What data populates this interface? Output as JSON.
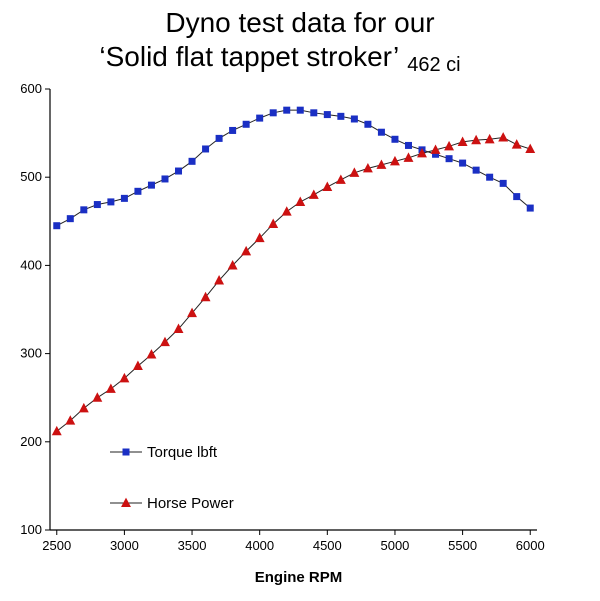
{
  "chart_data": {
    "type": "line",
    "title_line1": "Dyno test data for our",
    "title_line2": "‘Solid flat tappet stroker’",
    "title_suffix": "462 ci",
    "xlabel": "Engine RPM",
    "ylabel": "",
    "xlim": [
      2450,
      6050
    ],
    "ylim": [
      100,
      600
    ],
    "xticks": [
      2500,
      3000,
      3500,
      4000,
      4500,
      5000,
      5500,
      6000
    ],
    "yticks": [
      100,
      200,
      300,
      400,
      500,
      600
    ],
    "grid": false,
    "legend_position": "bottom-left",
    "series": [
      {
        "name": "Torque lbft",
        "color": "#1a2fc4",
        "marker": "square",
        "x": [
          2500,
          2600,
          2700,
          2800,
          2900,
          3000,
          3100,
          3200,
          3300,
          3400,
          3500,
          3600,
          3700,
          3800,
          3900,
          4000,
          4100,
          4200,
          4300,
          4400,
          4500,
          4600,
          4700,
          4800,
          4900,
          5000,
          5100,
          5200,
          5300,
          5400,
          5500,
          5600,
          5700,
          5800,
          5900,
          6000
        ],
        "values": [
          445,
          453,
          463,
          469,
          472,
          476,
          484,
          491,
          498,
          507,
          518,
          532,
          544,
          553,
          560,
          567,
          573,
          576,
          576,
          573,
          571,
          569,
          566,
          560,
          551,
          543,
          536,
          531,
          526,
          521,
          516,
          508,
          500,
          493,
          478,
          465
        ]
      },
      {
        "name": "Horse Power",
        "color": "#cc1111",
        "marker": "triangle",
        "x": [
          2500,
          2600,
          2700,
          2800,
          2900,
          3000,
          3100,
          3200,
          3300,
          3400,
          3500,
          3600,
          3700,
          3800,
          3900,
          4000,
          4100,
          4200,
          4300,
          4400,
          4500,
          4600,
          4700,
          4800,
          4900,
          5000,
          5100,
          5200,
          5300,
          5400,
          5500,
          5600,
          5700,
          5800,
          5900,
          6000
        ],
        "values": [
          212,
          224,
          238,
          250,
          260,
          272,
          286,
          299,
          313,
          328,
          346,
          364,
          383,
          400,
          416,
          431,
          447,
          461,
          472,
          480,
          489,
          497,
          505,
          510,
          514,
          518,
          522,
          527,
          531,
          535,
          540,
          542,
          543,
          545,
          537,
          532
        ]
      }
    ]
  }
}
